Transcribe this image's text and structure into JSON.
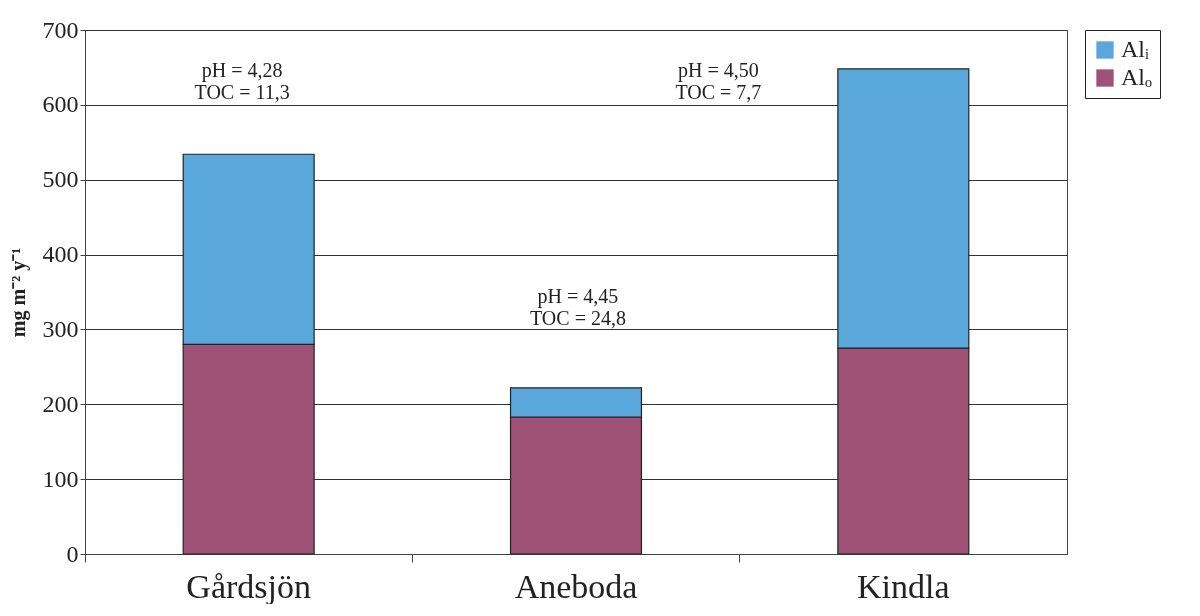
{
  "chart_data": {
    "type": "bar",
    "stacked": true,
    "ylabel": "mg m⁻² y⁻¹",
    "categories": [
      "Gårdsjön",
      "Aneboda",
      "Kindla"
    ],
    "series": [
      {
        "name": "Alₒ",
        "color": "#9e5275",
        "values": [
          280,
          183,
          275
        ]
      },
      {
        "name": "Alᵢ",
        "color": "#5aa7db",
        "values": [
          254,
          39,
          373
        ]
      }
    ],
    "ylim": [
      0,
      700
    ],
    "yticks": [
      0,
      100,
      200,
      300,
      400,
      500,
      600,
      700
    ],
    "grid": "y",
    "legend": "right",
    "annotations": [
      "pH = 4,28\nTOC = 11,3",
      "pH = 4,45\nTOC = 24,8",
      "pH = 4,50\nTOC = 7,7"
    ]
  }
}
